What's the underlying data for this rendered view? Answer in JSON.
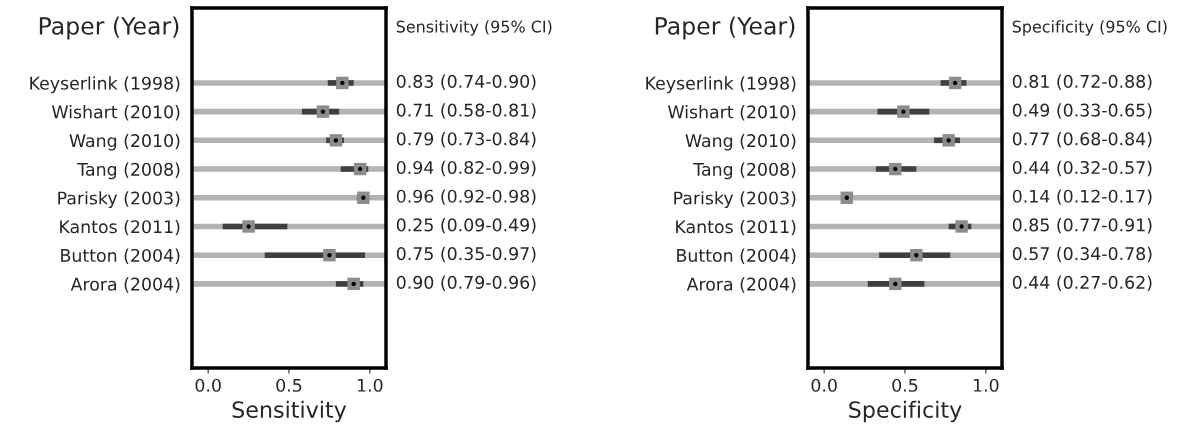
{
  "chart_data": [
    {
      "type": "scatter",
      "orientation": "horizontal",
      "ylabel": "Paper (Year)",
      "xlabel": "Sensitivity",
      "annotations": [
        "Sensitivity (95% CI)"
      ],
      "categories": [
        "Keyserlink (1998)",
        "Wishart (2010)",
        "Wang (2010)",
        "Tang (2008)",
        "Parisky (2003)",
        "Kantos (2011)",
        "Button (2004)",
        "Arora (2004)"
      ],
      "series": [
        {
          "color": "#8c8c8c",
          "values": [
            0.83,
            0.71,
            0.79,
            0.94,
            0.96,
            0.25,
            0.75,
            0.9
          ],
          "errors": [
            [
              0.74,
              0.9
            ],
            [
              0.58,
              0.81
            ],
            [
              0.73,
              0.84
            ],
            [
              0.82,
              0.99
            ],
            [
              0.92,
              0.98
            ],
            [
              0.09,
              0.49
            ],
            [
              0.35,
              0.97
            ],
            [
              0.79,
              0.96
            ]
          ],
          "value_labels": [
            "0.83 (0.74-0.90)",
            "0.71 (0.58-0.81)",
            "0.79 (0.73-0.84)",
            "0.94 (0.82-0.99)",
            "0.96 (0.92-0.98)",
            "0.25 (0.09-0.49)",
            "0.75 (0.35-0.97)",
            "0.90 (0.79-0.96)"
          ]
        }
      ],
      "xlim": [
        -0.1,
        1.1
      ],
      "xticks": [
        {
          "value": 0,
          "label": "0.0"
        },
        {
          "value": 0.5,
          "label": "0.5"
        },
        {
          "value": 1,
          "label": "1.0"
        }
      ],
      "marker": "square",
      "grid": "y",
      "legend": false
    },
    {
      "type": "scatter",
      "orientation": "horizontal",
      "ylabel": "Paper (Year)",
      "xlabel": "Specificity",
      "annotations": [
        "Specificity (95% CI)"
      ],
      "categories": [
        "Keyserlink (1998)",
        "Wishart (2010)",
        "Wang (2010)",
        "Tang (2008)",
        "Parisky (2003)",
        "Kantos (2011)",
        "Button (2004)",
        "Arora (2004)"
      ],
      "series": [
        {
          "color": "#8c8c8c",
          "values": [
            0.81,
            0.49,
            0.77,
            0.44,
            0.14,
            0.85,
            0.57,
            0.44
          ],
          "errors": [
            [
              0.72,
              0.88
            ],
            [
              0.33,
              0.65
            ],
            [
              0.68,
              0.84
            ],
            [
              0.32,
              0.57
            ],
            [
              0.12,
              0.17
            ],
            [
              0.77,
              0.91
            ],
            [
              0.34,
              0.78
            ],
            [
              0.27,
              0.62
            ]
          ],
          "value_labels": [
            "0.81 (0.72-0.88)",
            "0.49 (0.33-0.65)",
            "0.77 (0.68-0.84)",
            "0.44 (0.32-0.57)",
            "0.14 (0.12-0.17)",
            "0.85 (0.77-0.91)",
            "0.57 (0.34-0.78)",
            "0.44 (0.27-0.62)"
          ]
        }
      ],
      "xlim": [
        -0.1,
        1.1
      ],
      "xticks": [
        {
          "value": 0,
          "label": "0.0"
        },
        {
          "value": 0.5,
          "label": "0.5"
        },
        {
          "value": 1,
          "label": "1.0"
        }
      ],
      "marker": "square",
      "grid": "y",
      "legend": false
    }
  ]
}
